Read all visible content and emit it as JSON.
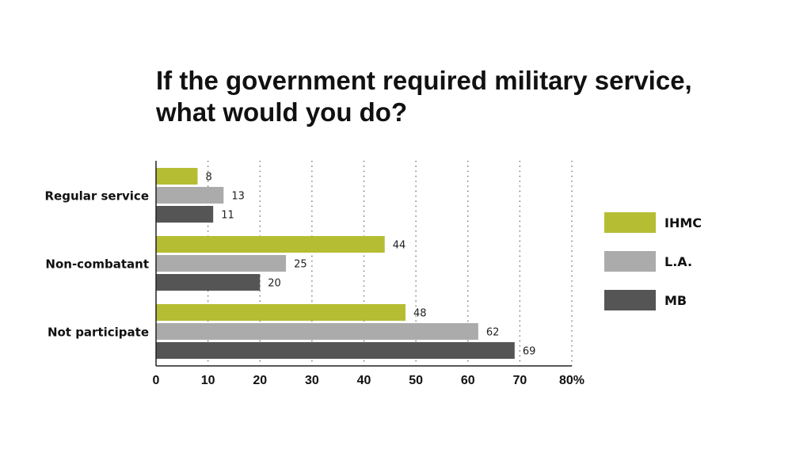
{
  "chart_data": {
    "type": "bar",
    "orientation": "horizontal",
    "title_lines": [
      "If the government required military service,",
      "what would you do?"
    ],
    "categories": [
      "Regular service",
      "Non-combatant",
      "Not participate"
    ],
    "series": [
      {
        "name": "IHMC",
        "color": "#b5bd33",
        "values": [
          8,
          44,
          48
        ]
      },
      {
        "name": "L.A.",
        "color": "#ababab",
        "values": [
          13,
          25,
          62
        ]
      },
      {
        "name": "MB",
        "color": "#555555",
        "values": [
          11,
          20,
          69
        ]
      }
    ],
    "xlim": [
      0,
      80
    ],
    "x_ticks": [
      "0",
      "10",
      "20",
      "30",
      "40",
      "50",
      "60",
      "70",
      "80%"
    ],
    "grid": "vertical dotted",
    "legend_position": "right"
  }
}
